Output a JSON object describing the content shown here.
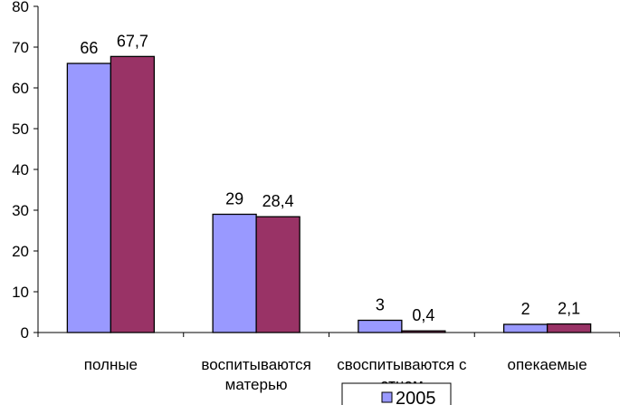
{
  "chart_data": {
    "type": "bar",
    "categories": [
      [
        "полные"
      ],
      [
        "воспитываются",
        "матерью"
      ],
      [
        "своспитываются с",
        "отцом"
      ],
      [
        "опекаемые"
      ]
    ],
    "series": [
      {
        "name": "2005",
        "values": [
          66,
          29,
          3,
          2
        ],
        "labels": [
          "66",
          "29",
          "3",
          "2"
        ]
      },
      {
        "name": "",
        "values": [
          67.7,
          28.4,
          0.4,
          2.1
        ],
        "labels": [
          "67,7",
          "28,4",
          "0,4",
          "2,1"
        ]
      }
    ],
    "ylim": [
      0,
      80
    ],
    "yticks": [
      "0",
      "10",
      "20",
      "30",
      "40",
      "50",
      "60",
      "70",
      "80"
    ],
    "grid": false,
    "legend": "bottom",
    "colors": {
      "series1": "#9999ff",
      "series2": "#993366",
      "outline": "#000000"
    }
  }
}
